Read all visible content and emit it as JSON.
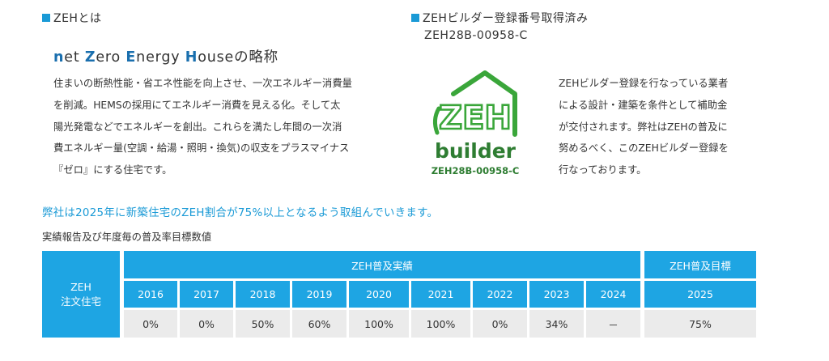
{
  "left_heading": "ZEHとは",
  "right_heading": "ZEHビルダー登録番号取得済み",
  "registration_number": "ZEH28B-00958-C",
  "subtitle": {
    "parts": [
      "n",
      "et ",
      "Z",
      "ero ",
      "E",
      "nergy ",
      "H",
      "ouseの略称"
    ]
  },
  "left_description": [
    "住まいの断熱性能・省エネ性能を向上させ、一次エネルギー消費量",
    "を削減。HEMSの採用にてエネルギー消費を見える化。そして太",
    "陽光発電などでエネルギーを創出。これらを満たし年間の一次消",
    "費エネルギー量(空調・給湯・照明・換気)の収支をプラスマイナス",
    "『ゼロ』にする住宅です。"
  ],
  "logo": {
    "mark_text": "ZEH",
    "builder_text": "builder",
    "number_text": "ZEH28B-00958-C",
    "green": "#3aa63a",
    "dark_green": "#2e7d32"
  },
  "right_description": [
    "ZEHビルダー登録を行なっている業者",
    "による設計・建築を条件として補助金",
    "が交付されます。弊社はZEHの普及に",
    "努めるべく、このZEHビルダー登録を",
    "行なっております。"
  ],
  "goal_text": "弊社は2025年に新築住宅のZEH割合が75%以上となるよう取組んでいきます。",
  "table_caption": "実績報告及び年度毎の普及率目標数値",
  "table": {
    "row_label_line1": "ZEH",
    "row_label_line2": "注文住宅",
    "actual_header": "ZEH普及実績",
    "target_header": "ZEH普及目標",
    "years": [
      "2016",
      "2017",
      "2018",
      "2019",
      "2020",
      "2021",
      "2022",
      "2023",
      "2024"
    ],
    "values": [
      "0%",
      "0%",
      "50%",
      "60%",
      "100%",
      "100%",
      "0%",
      "34%",
      "－"
    ],
    "target_year": "2025",
    "target_value": "75%"
  },
  "colors": {
    "accent_blue": "#1ea5e3",
    "cell_gray": "#ebebeb",
    "subtitle_blue": "#1a6fae"
  }
}
